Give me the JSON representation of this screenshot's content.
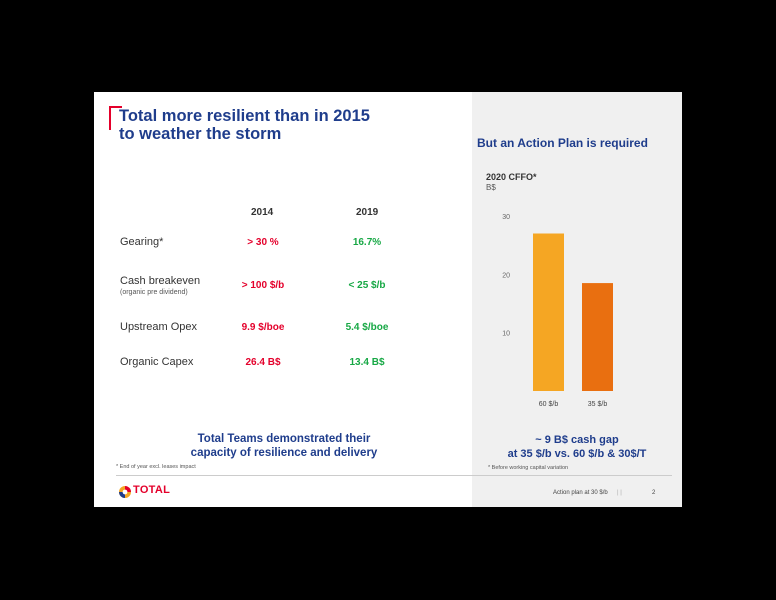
{
  "title": {
    "line1": "Total more resilient than in 2015",
    "line2": "to weather the storm"
  },
  "table": {
    "years": [
      "2014",
      "2019"
    ],
    "rows": [
      {
        "label": "Gearing*",
        "sublabel": "",
        "v2014": "> 30 %",
        "v2019": "16.7%"
      },
      {
        "label": "Cash breakeven",
        "sublabel": "(organic pre dividend)",
        "v2014": "> 100 $/b",
        "v2019": "< 25 $/b"
      },
      {
        "label": "Upstream Opex",
        "sublabel": "",
        "v2014": "9.9 $/boe",
        "v2019": "5.4 $/boe"
      },
      {
        "label": "Organic Capex",
        "sublabel": "",
        "v2014": "26.4 B$",
        "v2019": "13.4 B$"
      }
    ]
  },
  "conclusion": {
    "line1": "Total Teams demonstrated their",
    "line2": "capacity of resilience and delivery"
  },
  "footnote_left": "* End of year excl. leases impact",
  "footnote_right": "* Before working capital variation",
  "panel": {
    "title": "But an Action Plan is required",
    "gap_line1": "~ 9 B$ cash gap",
    "gap_line2": "at 35 $/b vs. 60 $/b & 30$/T"
  },
  "footer": {
    "logo_text": "TOTAL",
    "section": "Action plan at 30 $/b",
    "separator": "|  |",
    "page": "2"
  },
  "colors": {
    "brand_blue": "#1f3d8c",
    "brand_red": "#e4002b",
    "good_green": "#17a845",
    "bar_60": "#f5a623",
    "bar_35": "#e96f10"
  },
  "chart_data": {
    "type": "bar",
    "title": "2020 CFFO*",
    "ylabel": "B$",
    "categories": [
      "60 $/b",
      "35 $/b"
    ],
    "values": [
      27,
      18.5
    ],
    "yticks": [
      10,
      20,
      30
    ],
    "ylim": [
      0,
      30
    ],
    "grid": false
  }
}
